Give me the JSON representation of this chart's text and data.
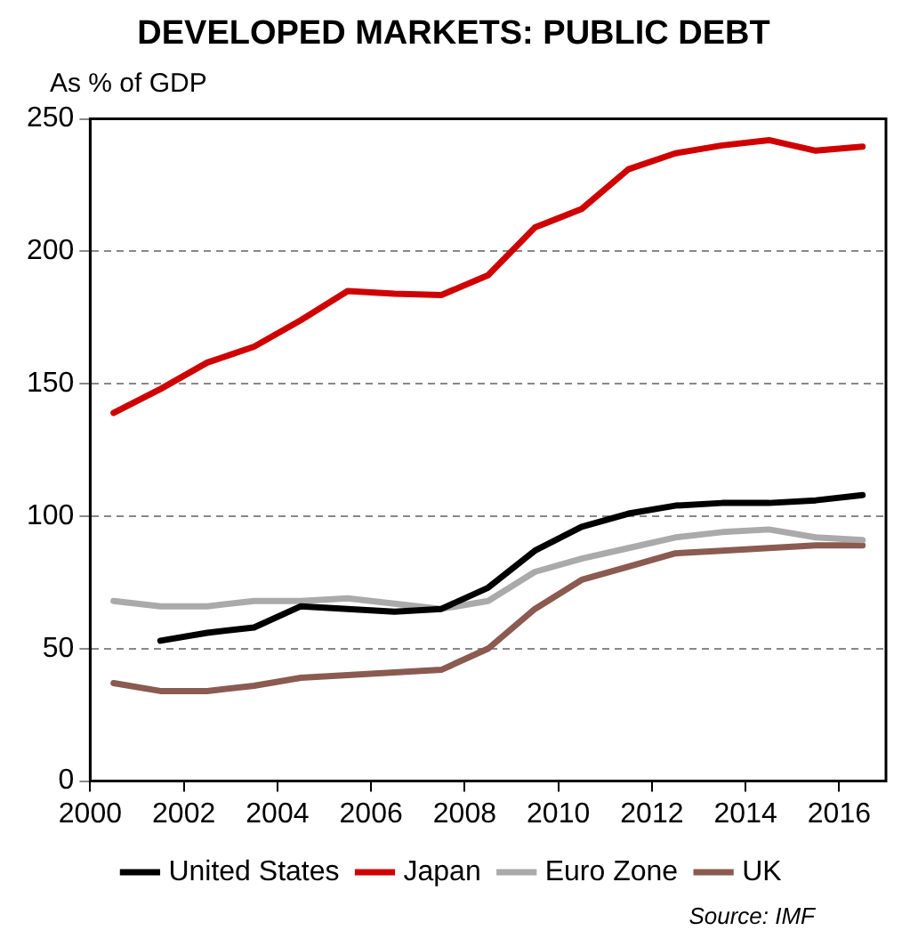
{
  "chart_data": {
    "type": "line",
    "title": "DEVELOPED MARKETS: PUBLIC DEBT",
    "ylabel": "As % of GDP",
    "annotations": [
      "Source: IMF"
    ],
    "x": [
      2000.5,
      2001.5,
      2002.5,
      2003.5,
      2004.5,
      2005.5,
      2006.5,
      2007.5,
      2008.5,
      2009.5,
      2010.5,
      2011.5,
      2012.5,
      2013.5,
      2014.5,
      2015.5,
      2016.5
    ],
    "series": [
      {
        "name": "United States",
        "color": "#000000",
        "values": [
          null,
          53,
          56,
          58,
          66,
          65,
          64,
          65,
          73,
          87,
          96,
          101,
          104,
          105,
          105,
          106,
          108
        ]
      },
      {
        "name": "Japan",
        "color": "#d00000",
        "values": [
          139,
          148,
          158,
          164,
          174,
          185,
          184,
          183.5,
          191,
          209,
          216,
          231,
          237,
          240,
          242,
          238,
          239.5
        ]
      },
      {
        "name": "Euro Zone",
        "color": "#aaaaaa",
        "values": [
          68,
          66,
          66,
          68,
          68,
          69,
          67,
          65,
          68,
          79,
          84,
          88,
          92,
          94,
          95,
          92,
          91
        ]
      },
      {
        "name": "UK",
        "color": "#8b5a50",
        "values": [
          37,
          34,
          34,
          36,
          39,
          40,
          41,
          42,
          50,
          65,
          76,
          81,
          86,
          87,
          88,
          89,
          89
        ]
      }
    ],
    "xlim": [
      2000,
      2017
    ],
    "xticks": [
      2000,
      2002,
      2004,
      2006,
      2008,
      2010,
      2012,
      2014,
      2016
    ],
    "ylim": [
      0,
      250
    ],
    "yticks": [
      0,
      50,
      100,
      150,
      200,
      250
    ],
    "grid": "y",
    "legend": "bottom",
    "marker": "none",
    "line_style": "solid"
  }
}
